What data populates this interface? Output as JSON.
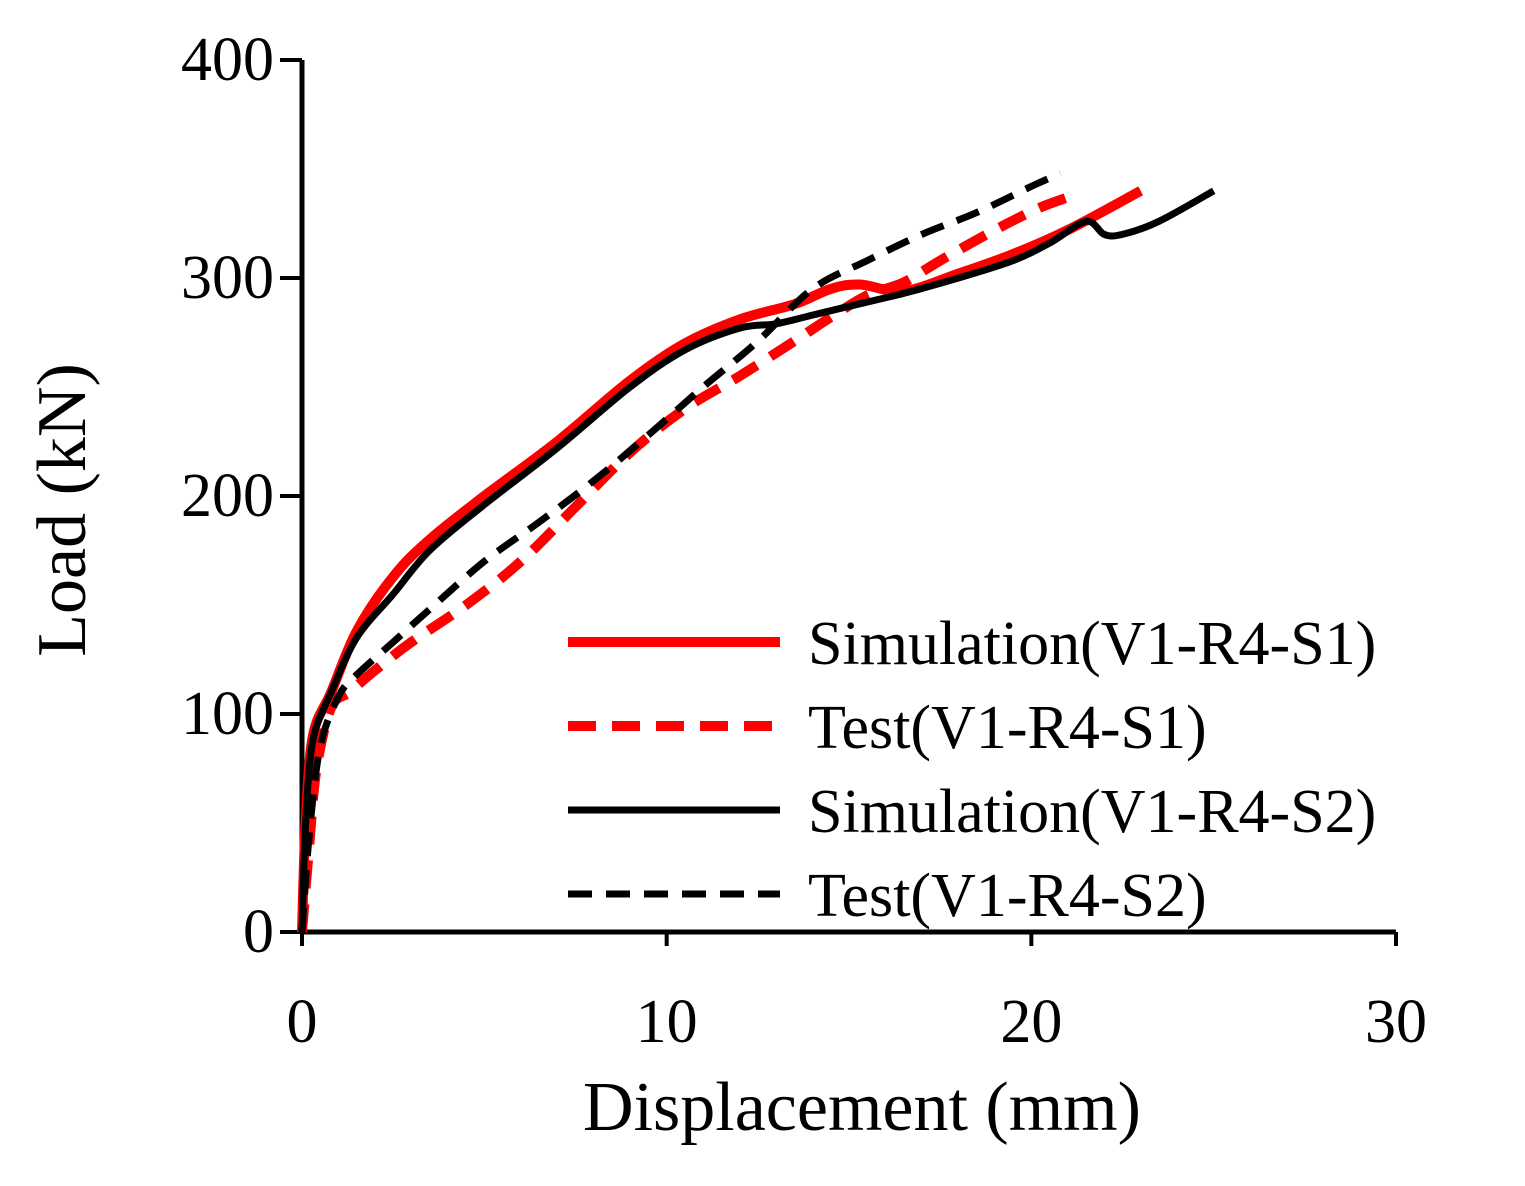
{
  "chart_data": {
    "type": "line",
    "title": "",
    "xlabel": "Displacement (mm)",
    "ylabel": "Load (kN)",
    "xlim": [
      0,
      30
    ],
    "ylim": [
      0,
      400
    ],
    "xticks": [
      0,
      10,
      20,
      30
    ],
    "yticks": [
      0,
      100,
      200,
      300,
      400
    ],
    "xtick_labels": [
      "0",
      "10",
      "20",
      "30"
    ],
    "ytick_labels": [
      "0",
      "100",
      "200",
      "300",
      "400"
    ],
    "grid": false,
    "legend_position": "bottom-right",
    "series": [
      {
        "name": "Simulation(V1-R4-S1)",
        "color": "#ff0000",
        "style": "solid",
        "width": "thick",
        "points": [
          [
            0,
            0
          ],
          [
            0.1,
            50
          ],
          [
            0.3,
            90
          ],
          [
            0.8,
            110
          ],
          [
            1.5,
            138
          ],
          [
            2.5,
            163
          ],
          [
            3.5,
            180
          ],
          [
            5,
            200
          ],
          [
            7,
            225
          ],
          [
            9,
            253
          ],
          [
            10.5,
            270
          ],
          [
            12,
            281
          ],
          [
            13.5,
            288
          ],
          [
            14.5,
            295
          ],
          [
            15.3,
            297
          ],
          [
            16.5,
            294
          ],
          [
            18,
            302
          ],
          [
            19.5,
            311
          ],
          [
            21,
            322
          ],
          [
            23,
            340
          ]
        ]
      },
      {
        "name": "Test(V1-R4-S1)",
        "color": "#ff0000",
        "style": "dashed",
        "width": "thick",
        "points": [
          [
            0,
            0
          ],
          [
            0.2,
            40
          ],
          [
            0.4,
            75
          ],
          [
            0.8,
            103
          ],
          [
            1.3,
            110
          ],
          [
            2,
            120
          ],
          [
            3,
            133
          ],
          [
            4.5,
            150
          ],
          [
            6,
            170
          ],
          [
            7.5,
            195
          ],
          [
            9,
            220
          ],
          [
            10.5,
            240
          ],
          [
            12,
            255
          ],
          [
            13.5,
            271
          ],
          [
            14.5,
            282
          ],
          [
            15.5,
            292
          ],
          [
            16.5,
            298
          ],
          [
            17.5,
            308
          ],
          [
            19,
            322
          ],
          [
            20.2,
            332
          ],
          [
            21,
            337
          ]
        ]
      },
      {
        "name": "Simulation(V1-R4-S2)",
        "color": "#000000",
        "style": "solid",
        "width": "normal",
        "points": [
          [
            0,
            0
          ],
          [
            0.1,
            50
          ],
          [
            0.3,
            88
          ],
          [
            0.8,
            110
          ],
          [
            1.5,
            135
          ],
          [
            2.5,
            155
          ],
          [
            3.5,
            175
          ],
          [
            5,
            196
          ],
          [
            7,
            222
          ],
          [
            9,
            250
          ],
          [
            10.5,
            267
          ],
          [
            12,
            277
          ],
          [
            13,
            279
          ],
          [
            14,
            283
          ],
          [
            15,
            287
          ],
          [
            16.5,
            293
          ],
          [
            18,
            300
          ],
          [
            19.5,
            308
          ],
          [
            20.5,
            316
          ],
          [
            21.5,
            326
          ],
          [
            22,
            320
          ],
          [
            22.5,
            320
          ],
          [
            23.5,
            326
          ],
          [
            25,
            340
          ]
        ]
      },
      {
        "name": "Test(V1-R4-S2)",
        "color": "#000000",
        "style": "dashed",
        "width": "normal",
        "points": [
          [
            0,
            0
          ],
          [
            0.2,
            45
          ],
          [
            0.5,
            85
          ],
          [
            1,
            108
          ],
          [
            1.5,
            118
          ],
          [
            2.5,
            133
          ],
          [
            3.5,
            148
          ],
          [
            5,
            170
          ],
          [
            6.5,
            188
          ],
          [
            8,
            207
          ],
          [
            9.5,
            228
          ],
          [
            11,
            250
          ],
          [
            12.5,
            271
          ],
          [
            14,
            295
          ],
          [
            15.5,
            308
          ],
          [
            17,
            320
          ],
          [
            18.5,
            330
          ],
          [
            20,
            342
          ],
          [
            20.8,
            348
          ]
        ]
      }
    ]
  }
}
